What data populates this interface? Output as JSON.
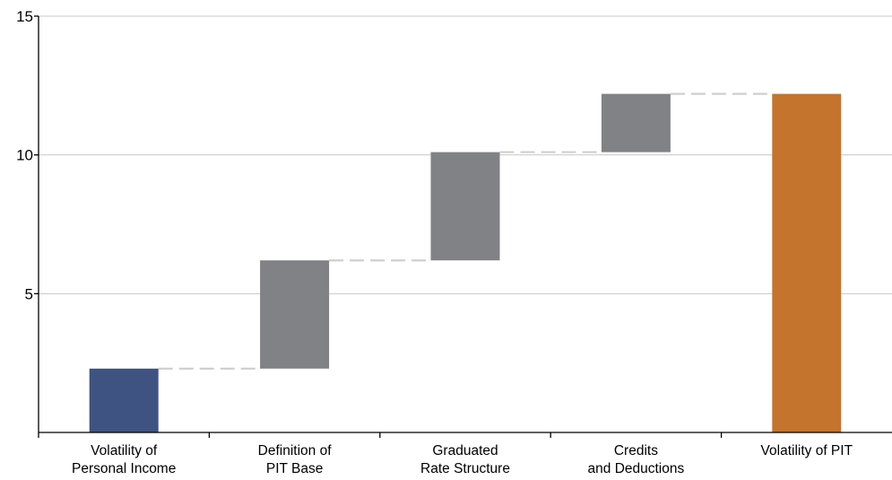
{
  "chart_data": {
    "type": "bar",
    "subtype": "waterfall",
    "title": "",
    "xlabel": "",
    "ylabel": "",
    "ylim": [
      0,
      15
    ],
    "yticks": [
      5,
      10,
      15
    ],
    "grid": "horizontal",
    "categories": [
      [
        "Volatility of",
        "Personal Income"
      ],
      [
        "Definition of",
        "PIT Base"
      ],
      [
        "Graduated",
        "Rate Structure"
      ],
      [
        "Credits",
        "and Deductions"
      ],
      [
        "Volatility of PIT"
      ]
    ],
    "bars": [
      {
        "start": 0,
        "end": 2.3,
        "kind": "base"
      },
      {
        "start": 2.3,
        "end": 6.2,
        "kind": "step"
      },
      {
        "start": 6.2,
        "end": 10.1,
        "kind": "step"
      },
      {
        "start": 10.1,
        "end": 12.2,
        "kind": "step"
      },
      {
        "start": 0,
        "end": 12.2,
        "kind": "total"
      }
    ],
    "colors": {
      "base": "#3f5382",
      "step": "#818286",
      "total": "#c4742c",
      "grid": "#c8c8c8",
      "connector": "#cfcfcf",
      "axis": "#000000"
    }
  }
}
